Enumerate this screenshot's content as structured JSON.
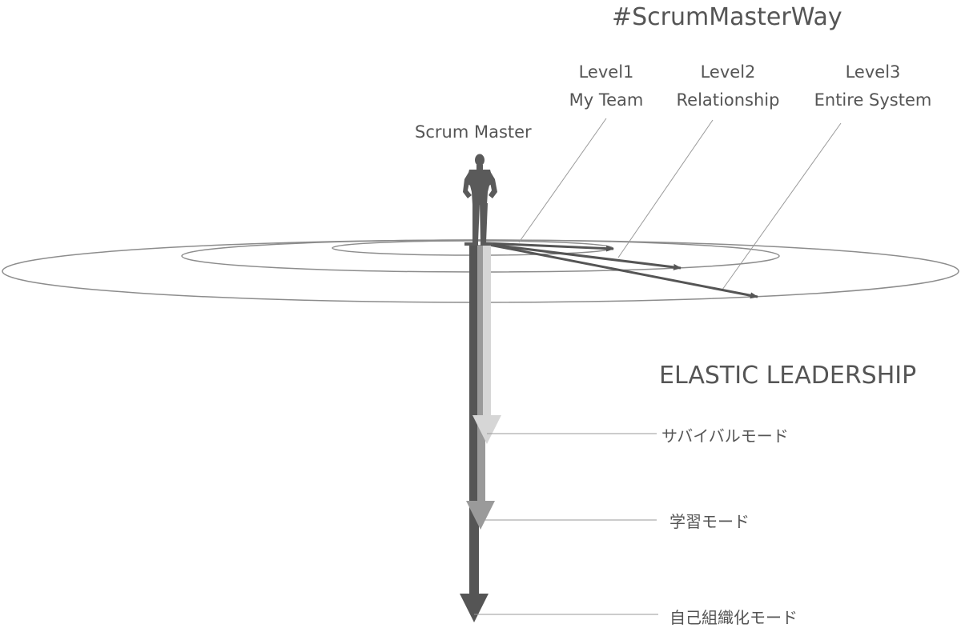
{
  "title": "#ScrumMasterWay",
  "role_label": "Scrum Master",
  "levels": [
    {
      "level": "Level1",
      "scope": "My Team"
    },
    {
      "level": "Level2",
      "scope": "Relationship"
    },
    {
      "level": "Level3",
      "scope": "Entire System"
    }
  ],
  "leadership_title": "ELASTIC LEADERSHIP",
  "modes": [
    {
      "label": "サバイバルモード",
      "color": "#d6d6d6"
    },
    {
      "label": "学習モード",
      "color": "#9a9a9a"
    },
    {
      "label": "自己組織化モード",
      "color": "#555555"
    }
  ],
  "colors": {
    "text": "#555555",
    "ring": "#8c8c8c",
    "leader_line": "#9a9a9a",
    "figure": "#5a5a5a"
  }
}
